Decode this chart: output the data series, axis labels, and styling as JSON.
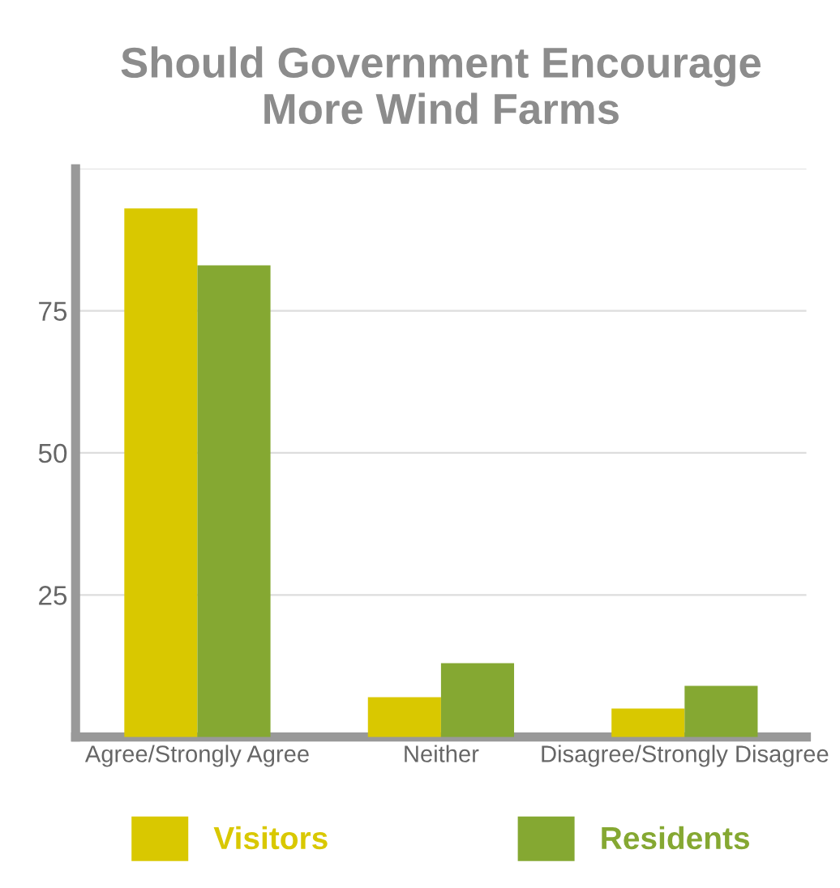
{
  "chart_data": {
    "type": "bar",
    "title": "Should Government Encourage\nMore Wind Farms",
    "categories": [
      "Agree/Strongly Agree",
      "Neither",
      "Disagree/Strongly Disagree"
    ],
    "series": [
      {
        "name": "Visitors",
        "color": "#d9c800",
        "values": [
          93,
          7,
          5
        ]
      },
      {
        "name": "Residents",
        "color": "#85a832",
        "values": [
          83,
          13,
          9
        ]
      }
    ],
    "ylim": [
      0,
      100
    ],
    "yticks": [
      25,
      50,
      75,
      {
        "value": 100,
        "label": null
      }
    ],
    "grid": "y",
    "legend": "bottom"
  }
}
